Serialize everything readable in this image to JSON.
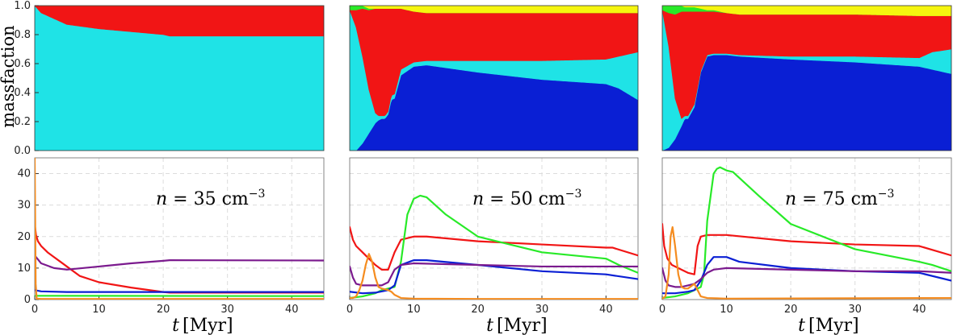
{
  "figure": {
    "ylabel_top": "massfaction",
    "xlabel_var": "t",
    "xlabel_unit": "[Myr]"
  },
  "colors": {
    "blue": "#0a1fd4",
    "cyan": "#1fe3e6",
    "red": "#f11515",
    "green": "#28ea28",
    "yellow": "#f5f50f",
    "purple": "#7b1a8e",
    "orange": "#f58c1f"
  },
  "chart_data": [
    {
      "type": "area",
      "panel": "top-left",
      "xlim": [
        0,
        45
      ],
      "ylim": [
        0,
        1
      ],
      "yticks": [
        "0.0",
        "0.2",
        "0.4",
        "0.6",
        "0.8",
        "1.0"
      ],
      "stack_order": [
        "blue",
        "cyan",
        "red",
        "green",
        "yellow"
      ],
      "series": [
        {
          "color": "blue",
          "x": [
            0,
            45
          ],
          "y": [
            0,
            0
          ]
        },
        {
          "color": "cyan",
          "x": [
            0,
            1,
            3,
            5,
            10,
            20,
            21,
            45
          ],
          "y": [
            1.0,
            0.95,
            0.91,
            0.87,
            0.84,
            0.8,
            0.79,
            0.79
          ]
        },
        {
          "color": "red",
          "x": [
            0,
            1,
            3,
            5,
            10,
            20,
            21,
            45
          ],
          "y": [
            0.0,
            0.05,
            0.09,
            0.13,
            0.16,
            0.2,
            0.21,
            0.21
          ]
        },
        {
          "color": "green",
          "x": [
            0,
            45
          ],
          "y": [
            0,
            0
          ]
        },
        {
          "color": "yellow",
          "x": [
            0,
            45
          ],
          "y": [
            0,
            0
          ]
        }
      ]
    },
    {
      "type": "area",
      "panel": "top-middle",
      "xlim": [
        0,
        45
      ],
      "ylim": [
        0,
        1
      ],
      "stack_order": [
        "blue",
        "cyan",
        "red",
        "green",
        "yellow"
      ],
      "series": [
        {
          "color": "blue",
          "x": [
            0,
            1,
            2,
            3,
            4,
            4.5,
            5,
            5.5,
            6,
            6.5,
            7,
            8,
            10,
            12,
            20,
            30,
            40,
            42,
            45
          ],
          "y": [
            0,
            0,
            0.05,
            0.12,
            0.19,
            0.21,
            0.22,
            0.22,
            0.25,
            0.35,
            0.36,
            0.52,
            0.58,
            0.59,
            0.54,
            0.49,
            0.46,
            0.43,
            0.35
          ]
        },
        {
          "color": "cyan",
          "x": [
            0,
            1,
            2,
            3,
            4,
            4.5,
            5,
            5.5,
            6,
            6.5,
            7,
            8,
            10,
            12,
            20,
            30,
            40,
            42,
            45
          ],
          "y": [
            0.97,
            0.85,
            0.6,
            0.3,
            0.07,
            0.03,
            0.02,
            0.02,
            0.02,
            0.03,
            0.03,
            0.04,
            0.03,
            0.03,
            0.08,
            0.13,
            0.17,
            0.22,
            0.33
          ]
        },
        {
          "color": "red",
          "x": [
            0,
            1,
            2,
            3,
            4,
            4.5,
            5,
            5.5,
            6,
            6.5,
            7,
            8,
            10,
            12,
            20,
            30,
            40,
            42,
            45
          ],
          "y": [
            0.0,
            0.12,
            0.33,
            0.55,
            0.72,
            0.74,
            0.74,
            0.74,
            0.71,
            0.6,
            0.59,
            0.42,
            0.35,
            0.33,
            0.33,
            0.33,
            0.32,
            0.3,
            0.27
          ]
        },
        {
          "color": "green",
          "x": [
            0,
            1,
            2,
            3,
            4,
            4.5,
            5,
            5.5,
            6,
            6.5,
            7,
            8,
            10,
            12,
            20,
            30,
            40,
            42,
            45
          ],
          "y": [
            0.03,
            0.03,
            0.02,
            0.01,
            0.0,
            0.0,
            0.0,
            0.0,
            0.0,
            0.0,
            0.0,
            0.0,
            0.0,
            0.0,
            0.0,
            0.0,
            0.0,
            0.0,
            0.0
          ]
        },
        {
          "color": "yellow",
          "x": [
            0,
            1,
            2,
            3,
            4,
            4.5,
            5,
            5.5,
            6,
            6.5,
            7,
            8,
            10,
            12,
            20,
            30,
            40,
            42,
            45
          ],
          "y": [
            0.0,
            0.0,
            0.0,
            0.02,
            0.02,
            0.02,
            0.02,
            0.02,
            0.02,
            0.02,
            0.02,
            0.02,
            0.04,
            0.05,
            0.05,
            0.05,
            0.05,
            0.05,
            0.05
          ]
        }
      ]
    },
    {
      "type": "area",
      "panel": "top-right",
      "xlim": [
        0,
        45
      ],
      "ylim": [
        0,
        1
      ],
      "stack_order": [
        "blue",
        "cyan",
        "red",
        "green",
        "yellow"
      ],
      "series": [
        {
          "color": "blue",
          "x": [
            0,
            1,
            2,
            3,
            3.5,
            4,
            5,
            6,
            7,
            8,
            10,
            12,
            20,
            30,
            40,
            42,
            45
          ],
          "y": [
            0,
            0.02,
            0.08,
            0.17,
            0.22,
            0.22,
            0.3,
            0.54,
            0.65,
            0.66,
            0.66,
            0.65,
            0.63,
            0.61,
            0.58,
            0.56,
            0.53
          ]
        },
        {
          "color": "cyan",
          "x": [
            0,
            1,
            2,
            3,
            3.5,
            4,
            5,
            6,
            7,
            8,
            10,
            12,
            20,
            30,
            40,
            42,
            45
          ],
          "y": [
            0.97,
            0.7,
            0.28,
            0.05,
            0.02,
            0.02,
            0.02,
            0.01,
            0.01,
            0.01,
            0.01,
            0.01,
            0.02,
            0.04,
            0.06,
            0.12,
            0.17
          ]
        },
        {
          "color": "red",
          "x": [
            0,
            1,
            2,
            3,
            3.5,
            4,
            5,
            6,
            7,
            8,
            10,
            12,
            20,
            30,
            40,
            42,
            45
          ],
          "y": [
            0.0,
            0.23,
            0.58,
            0.74,
            0.72,
            0.72,
            0.64,
            0.41,
            0.3,
            0.29,
            0.28,
            0.28,
            0.29,
            0.29,
            0.29,
            0.25,
            0.23
          ]
        },
        {
          "color": "green",
          "x": [
            0,
            1,
            2,
            3,
            3.5,
            4,
            5,
            6,
            7,
            8,
            10,
            12,
            20,
            30,
            40,
            42,
            45
          ],
          "y": [
            0.03,
            0.05,
            0.06,
            0.04,
            0.03,
            0.03,
            0.03,
            0.02,
            0.01,
            0.01,
            0.0,
            0.0,
            0.0,
            0.0,
            0.0,
            0.0,
            0.0
          ]
        },
        {
          "color": "yellow",
          "x": [
            0,
            1,
            2,
            3,
            3.5,
            4,
            5,
            6,
            7,
            8,
            10,
            12,
            20,
            30,
            40,
            42,
            45
          ],
          "y": [
            0.0,
            0.0,
            0.0,
            0.01,
            0.01,
            0.01,
            0.01,
            0.02,
            0.03,
            0.03,
            0.05,
            0.06,
            0.06,
            0.06,
            0.07,
            0.07,
            0.07
          ]
        }
      ]
    },
    {
      "type": "line",
      "panel": "bottom-left",
      "annotation": "n = 35 cm⁻³",
      "annotation_parts": {
        "var": "n",
        "value": " = 35 cm",
        "exp": "−3"
      },
      "xlim": [
        0,
        45
      ],
      "ylim": [
        0,
        45
      ],
      "xticks": [
        "0",
        "10",
        "20",
        "30",
        "40"
      ],
      "yticks": [
        "0",
        "10",
        "20",
        "30",
        "40"
      ],
      "series": [
        {
          "color": "red",
          "x": [
            0,
            0.2,
            0.5,
            1,
            2,
            3,
            4,
            5,
            7,
            10,
            15,
            20,
            21,
            45
          ],
          "y": [
            24,
            20.5,
            18.5,
            17,
            15,
            13.5,
            12,
            10.5,
            7.5,
            5.5,
            3.8,
            2.4,
            2.2,
            2.2
          ]
        },
        {
          "color": "purple",
          "x": [
            0,
            1,
            3,
            5,
            10,
            15,
            20,
            21,
            45
          ],
          "y": [
            14,
            11.5,
            10,
            9.5,
            10.5,
            11.5,
            12.3,
            12.5,
            12.4
          ]
        },
        {
          "color": "blue",
          "x": [
            0,
            1,
            5,
            10,
            20,
            45
          ],
          "y": [
            3,
            2.6,
            2.4,
            2.4,
            2.4,
            2.4
          ]
        },
        {
          "color": "green",
          "x": [
            0,
            45
          ],
          "y": [
            1.2,
            1.1
          ]
        },
        {
          "color": "orange",
          "x": [
            0,
            0.15,
            0.3,
            1,
            45
          ],
          "y": [
            45,
            5,
            0.3,
            0.2,
            0.2
          ]
        }
      ]
    },
    {
      "type": "line",
      "panel": "bottom-middle",
      "annotation": "n = 50 cm⁻³",
      "annotation_parts": {
        "var": "n",
        "value": " = 50 cm",
        "exp": "−3"
      },
      "xlim": [
        0,
        45
      ],
      "ylim": [
        0,
        45
      ],
      "xticks": [
        "0",
        "10",
        "20",
        "30",
        "40"
      ],
      "series": [
        {
          "color": "red",
          "x": [
            0,
            0.5,
            1,
            2,
            3,
            4,
            5,
            6,
            7,
            8,
            10,
            12,
            20,
            30,
            40,
            41,
            45
          ],
          "y": [
            23,
            19,
            17,
            15,
            13,
            11,
            9.5,
            9.5,
            15,
            19,
            20,
            20,
            18.5,
            17.5,
            16.5,
            16.5,
            14
          ]
        },
        {
          "color": "green",
          "x": [
            0,
            2,
            4,
            5,
            6,
            7,
            8,
            9,
            10,
            11,
            12,
            15,
            20,
            30,
            40,
            42,
            45
          ],
          "y": [
            0.5,
            1,
            2,
            3,
            3.5,
            4,
            12,
            27,
            32,
            33,
            32.5,
            27,
            20,
            15,
            13,
            11,
            8.5
          ]
        },
        {
          "color": "blue",
          "x": [
            0,
            2,
            4,
            6,
            7,
            8,
            10,
            12,
            20,
            30,
            40,
            45
          ],
          "y": [
            2.5,
            2,
            2.2,
            3,
            4.5,
            11,
            12.5,
            12.5,
            11,
            9,
            8,
            6.5
          ]
        },
        {
          "color": "purple",
          "x": [
            0,
            0.5,
            1,
            2,
            3,
            4,
            5,
            6,
            7,
            8,
            10,
            20,
            30,
            40,
            45
          ],
          "y": [
            10.5,
            7,
            5,
            4.5,
            4.5,
            4.5,
            4.5,
            5.5,
            9.5,
            11,
            11.5,
            11,
            10.5,
            10.5,
            10.5
          ]
        },
        {
          "color": "orange",
          "x": [
            0,
            0.5,
            1,
            1.5,
            2,
            2.5,
            3,
            3.5,
            4,
            4.5,
            5,
            6,
            6.5,
            7,
            8,
            10,
            20,
            45
          ],
          "y": [
            0.5,
            0.5,
            1,
            3,
            6,
            11,
            14.5,
            12,
            7,
            4,
            3.5,
            3,
            2.5,
            1.5,
            0.5,
            0.3,
            0.2,
            0.2
          ]
        }
      ]
    },
    {
      "type": "line",
      "panel": "bottom-right",
      "annotation": "n = 75 cm⁻³",
      "annotation_parts": {
        "var": "n",
        "value": " = 75 cm",
        "exp": "−3"
      },
      "xlim": [
        0,
        45
      ],
      "ylim": [
        0,
        45
      ],
      "xticks": [
        "0",
        "10",
        "20",
        "30",
        "40"
      ],
      "series": [
        {
          "color": "red",
          "x": [
            0,
            0.3,
            0.8,
            1.5,
            3,
            4,
            5,
            5.5,
            6,
            7,
            10,
            20,
            30,
            40,
            45
          ],
          "y": [
            24,
            17,
            13,
            11,
            9.5,
            8.5,
            8,
            17,
            20,
            20.5,
            20.5,
            18.5,
            17.5,
            17,
            14
          ]
        },
        {
          "color": "green",
          "x": [
            0,
            2,
            4,
            5,
            6,
            6.5,
            7,
            8,
            8.5,
            9,
            10,
            11,
            15,
            20,
            30,
            40,
            42,
            45
          ],
          "y": [
            0.5,
            1,
            2,
            3,
            4,
            8,
            25,
            40,
            41.5,
            42,
            41,
            40.5,
            33,
            24,
            16,
            12,
            11,
            9
          ]
        },
        {
          "color": "blue",
          "x": [
            0,
            2,
            4,
            5,
            6,
            7,
            8,
            10,
            12,
            20,
            30,
            40,
            45
          ],
          "y": [
            2,
            2,
            2.5,
            3,
            6,
            11,
            13.5,
            13.5,
            12,
            10,
            9,
            8.5,
            6
          ]
        },
        {
          "color": "purple",
          "x": [
            0,
            0.5,
            1,
            2,
            3,
            4,
            5,
            6,
            7,
            8,
            10,
            20,
            30,
            40,
            45
          ],
          "y": [
            10,
            6,
            4.5,
            4,
            4,
            4.5,
            5,
            6.5,
            8.5,
            9.5,
            10,
            9.5,
            9,
            9,
            8.5
          ]
        },
        {
          "color": "orange",
          "x": [
            0,
            0.5,
            1,
            1.3,
            1.6,
            2,
            2.5,
            3,
            3.5,
            4,
            5,
            5.5,
            6,
            7,
            10,
            45
          ],
          "y": [
            0.3,
            1,
            8,
            20,
            23,
            17,
            8,
            4,
            3.5,
            3.5,
            5,
            3,
            1,
            0.5,
            0.3,
            0.5
          ]
        }
      ]
    }
  ]
}
